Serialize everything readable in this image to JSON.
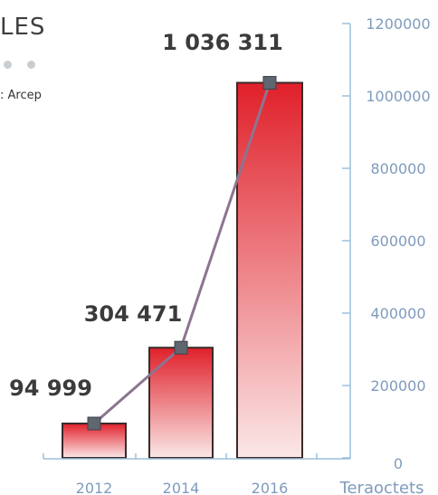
{
  "header": {
    "title_fragment": "LES",
    "source_fragment": ": Arcep"
  },
  "chart_data": {
    "type": "bar",
    "categories": [
      "2012",
      "2014",
      "2016"
    ],
    "values": [
      94999,
      304471,
      1036311
    ],
    "data_labels": [
      "94 999",
      "304 471",
      "1 036 311"
    ],
    "ylim": [
      0,
      1200000
    ],
    "yticks": [
      0,
      200000,
      400000,
      600000,
      800000,
      1000000,
      1200000
    ],
    "ylabel": "Teraoctets",
    "overlay_line": true,
    "grid": false,
    "y_axis_position": "right"
  },
  "colors": {
    "bar_top": "#e0202a",
    "bar_bottom": "#fbe7e7",
    "bar_stroke": "#3a2a2a",
    "line": "#8c7590",
    "marker": "#5f6670",
    "axis": "#9cc0db",
    "tick_text": "#7f9bbd",
    "label_text": "#3b3b3b"
  }
}
